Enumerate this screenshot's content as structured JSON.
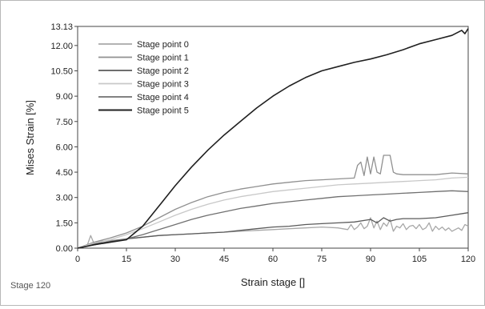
{
  "footer": {
    "stage_label": "Stage 120"
  },
  "chart_data": {
    "type": "line",
    "title": "",
    "xlabel": "Strain stage []",
    "ylabel": "Mises Strain [%]",
    "xlim": [
      0,
      120
    ],
    "ylim": [
      0,
      13.13
    ],
    "x_ticks": [
      0,
      15,
      30,
      45,
      60,
      75,
      90,
      105,
      120
    ],
    "y_ticks": [
      "0.00",
      "1.50",
      "3.00",
      "4.50",
      "6.00",
      "7.50",
      "9.00",
      "10.50",
      "12.00",
      "13.13"
    ],
    "grid": false,
    "legend_position": "top-left",
    "series": [
      {
        "name": "Stage point 0",
        "color": "#a8a8a8",
        "x": [
          0,
          3,
          4,
          5,
          6,
          10,
          15,
          20,
          25,
          30,
          35,
          40,
          45,
          50,
          55,
          60,
          65,
          70,
          75,
          80,
          83,
          84,
          85,
          86,
          87,
          88,
          89,
          90,
          91,
          92,
          93,
          94,
          95,
          96,
          97,
          98,
          99,
          100,
          101,
          102,
          103,
          104,
          105,
          106,
          107,
          108,
          109,
          110,
          111,
          112,
          113,
          114,
          115,
          116,
          117,
          118,
          119,
          120
        ],
        "y": [
          0,
          0.2,
          0.75,
          0.3,
          0.4,
          0.45,
          0.55,
          0.65,
          0.75,
          0.8,
          0.85,
          0.9,
          0.95,
          1.0,
          1.05,
          1.1,
          1.15,
          1.2,
          1.25,
          1.2,
          1.1,
          1.4,
          1.1,
          1.25,
          1.5,
          1.15,
          1.3,
          1.8,
          1.2,
          1.6,
          1.1,
          1.5,
          1.3,
          1.7,
          1.0,
          1.3,
          1.2,
          1.45,
          1.1,
          1.3,
          1.35,
          1.15,
          1.4,
          1.1,
          1.2,
          1.5,
          1.0,
          1.3,
          1.1,
          1.25,
          1.05,
          1.2,
          1.0,
          1.1,
          1.2,
          1.05,
          1.4,
          1.3
        ]
      },
      {
        "name": "Stage point 1",
        "color": "#909090",
        "x": [
          0,
          5,
          10,
          15,
          20,
          25,
          30,
          35,
          40,
          45,
          50,
          55,
          60,
          65,
          70,
          75,
          80,
          85,
          86,
          87,
          88,
          89,
          90,
          91,
          92,
          93,
          94,
          95,
          96,
          97,
          98,
          100,
          105,
          110,
          115,
          120
        ],
        "y": [
          0,
          0.35,
          0.6,
          0.9,
          1.3,
          1.8,
          2.3,
          2.7,
          3.05,
          3.3,
          3.5,
          3.65,
          3.8,
          3.9,
          4.0,
          4.05,
          4.1,
          4.15,
          4.9,
          5.1,
          4.3,
          5.4,
          4.4,
          5.4,
          4.5,
          4.4,
          5.5,
          5.5,
          5.5,
          4.5,
          4.4,
          4.35,
          4.35,
          4.35,
          4.45,
          4.4
        ]
      },
      {
        "name": "Stage point 2",
        "color": "#5a5a5a",
        "x": [
          0,
          5,
          10,
          15,
          20,
          25,
          30,
          35,
          40,
          45,
          50,
          55,
          60,
          65,
          70,
          75,
          80,
          85,
          90,
          92,
          94,
          96,
          98,
          100,
          105,
          110,
          115,
          120
        ],
        "y": [
          0,
          0.25,
          0.4,
          0.55,
          0.65,
          0.75,
          0.8,
          0.85,
          0.9,
          0.95,
          1.05,
          1.15,
          1.25,
          1.3,
          1.4,
          1.45,
          1.5,
          1.55,
          1.7,
          1.5,
          1.8,
          1.6,
          1.7,
          1.75,
          1.75,
          1.8,
          1.95,
          2.1
        ]
      },
      {
        "name": "Stage point 3",
        "color": "#c8c8c8",
        "x": [
          0,
          5,
          10,
          15,
          20,
          25,
          30,
          35,
          40,
          45,
          50,
          55,
          60,
          65,
          70,
          75,
          80,
          85,
          90,
          95,
          100,
          105,
          110,
          115,
          120
        ],
        "y": [
          0,
          0.3,
          0.5,
          0.8,
          1.15,
          1.55,
          1.95,
          2.3,
          2.6,
          2.85,
          3.05,
          3.2,
          3.35,
          3.45,
          3.55,
          3.65,
          3.75,
          3.8,
          3.85,
          3.9,
          3.95,
          4.0,
          4.05,
          4.15,
          4.2
        ]
      },
      {
        "name": "Stage point 4",
        "color": "#707070",
        "x": [
          0,
          5,
          10,
          15,
          20,
          25,
          30,
          35,
          40,
          45,
          50,
          55,
          60,
          65,
          70,
          75,
          80,
          85,
          90,
          95,
          100,
          105,
          110,
          115,
          120
        ],
        "y": [
          0,
          0.2,
          0.35,
          0.55,
          0.8,
          1.1,
          1.4,
          1.7,
          1.95,
          2.15,
          2.35,
          2.5,
          2.65,
          2.75,
          2.85,
          2.95,
          3.05,
          3.1,
          3.15,
          3.2,
          3.25,
          3.3,
          3.35,
          3.4,
          3.35
        ]
      },
      {
        "name": "Stage point 5",
        "color": "#202020",
        "x": [
          0,
          5,
          10,
          15,
          20,
          25,
          30,
          35,
          40,
          45,
          50,
          55,
          60,
          65,
          70,
          75,
          80,
          85,
          90,
          95,
          100,
          105,
          110,
          115,
          118,
          119,
          120
        ],
        "y": [
          0,
          0.2,
          0.35,
          0.5,
          1.3,
          2.5,
          3.7,
          4.8,
          5.8,
          6.7,
          7.5,
          8.3,
          9.0,
          9.6,
          10.1,
          10.5,
          10.75,
          11.0,
          11.2,
          11.45,
          11.75,
          12.1,
          12.35,
          12.6,
          12.9,
          12.7,
          13.0
        ]
      }
    ]
  }
}
